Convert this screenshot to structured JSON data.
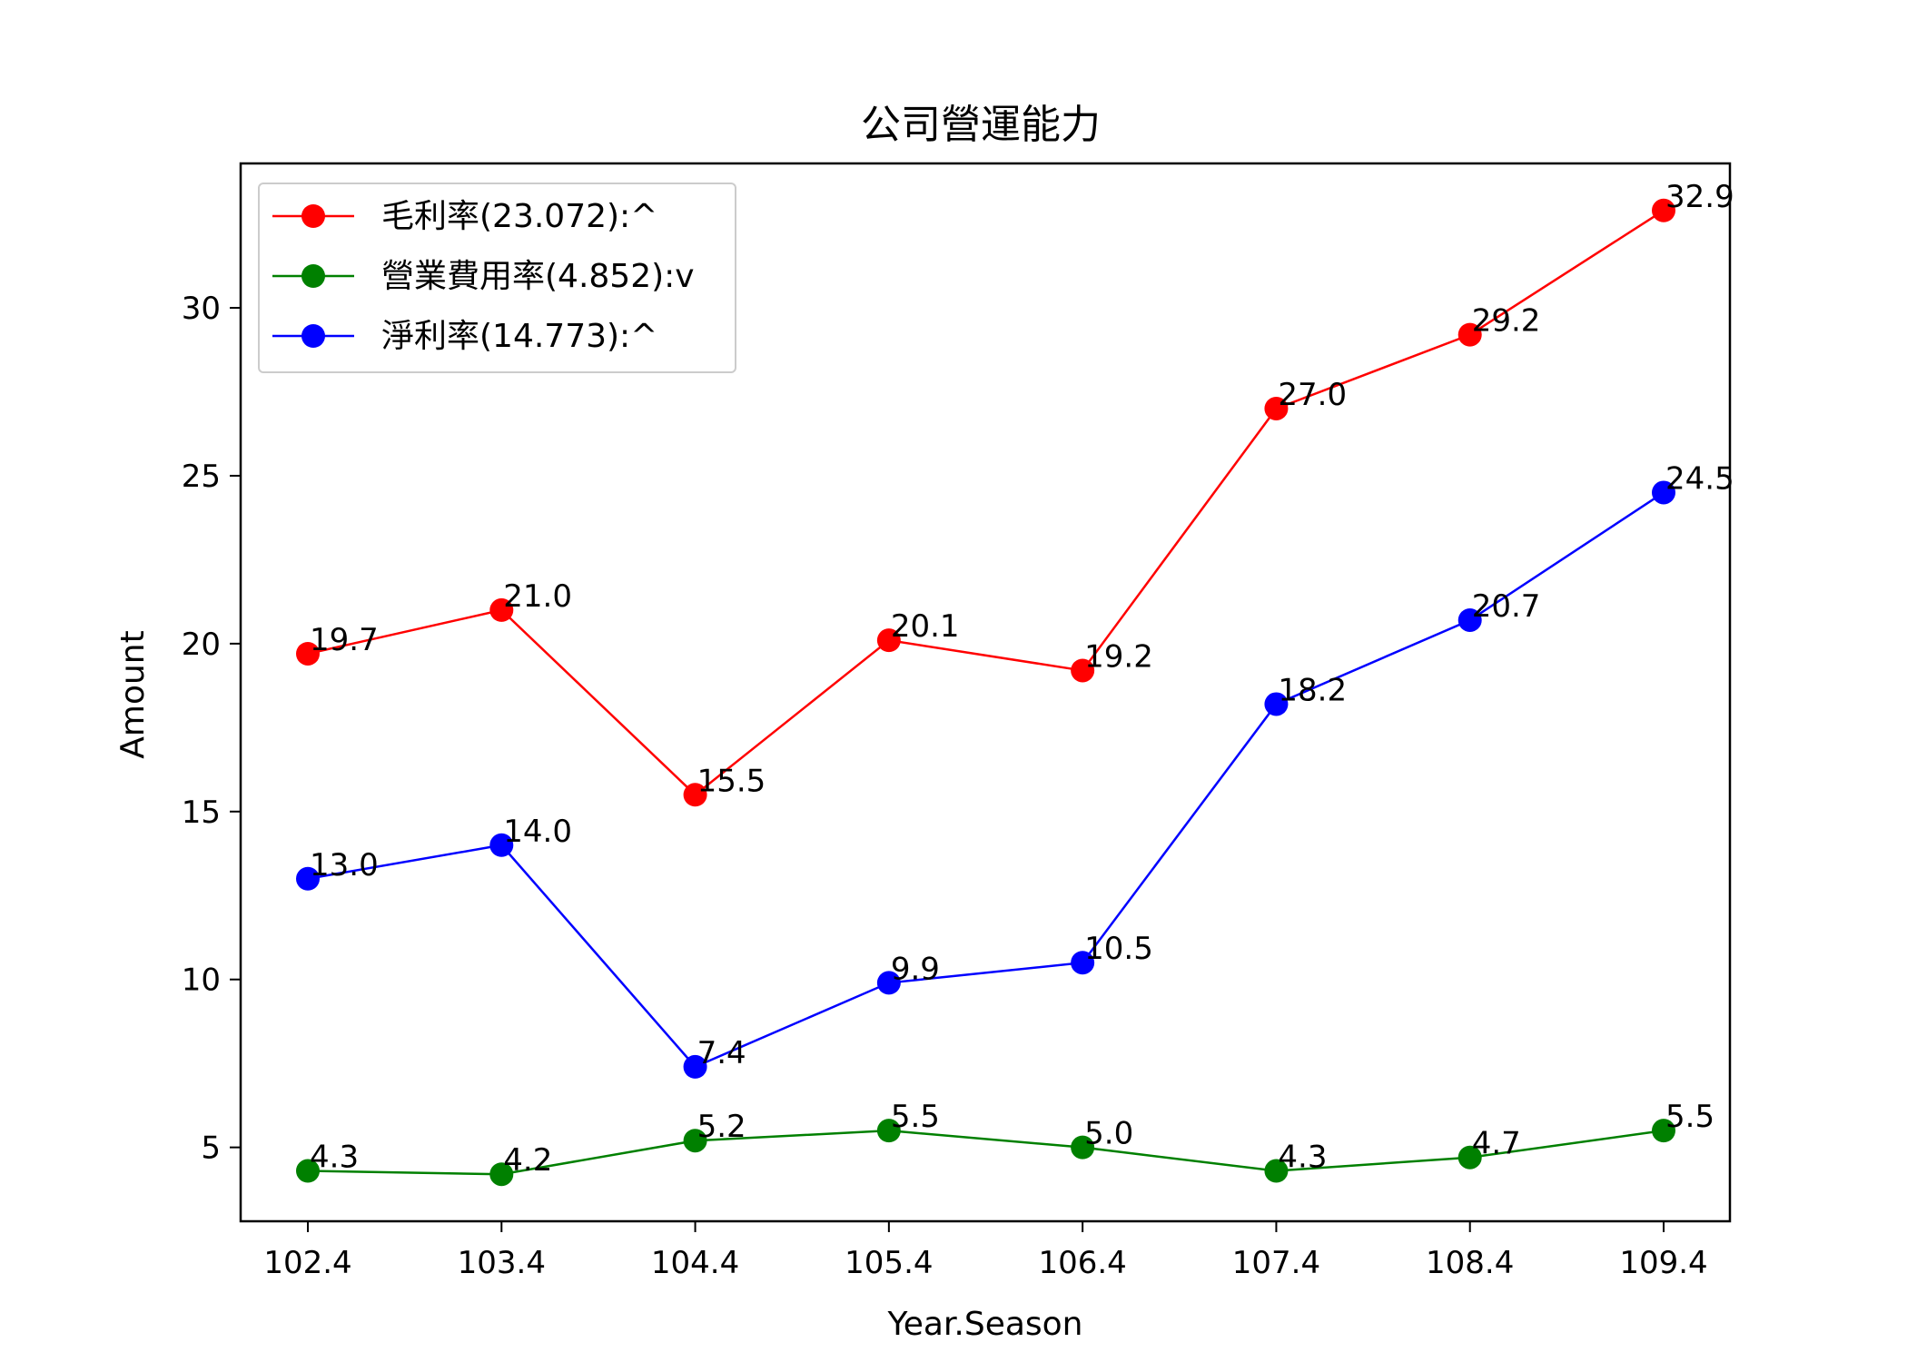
{
  "chart_data": {
    "type": "line",
    "title": "公司營運能力",
    "xlabel": "Year.Season",
    "ylabel": "Amount",
    "categories": [
      "102.4",
      "103.4",
      "104.4",
      "105.4",
      "106.4",
      "107.4",
      "108.4",
      "109.4"
    ],
    "ylim": [
      2.8,
      34.3
    ],
    "yticks": [
      5,
      10,
      15,
      20,
      25,
      30
    ],
    "grid": false,
    "legend_position": "top-left",
    "series": [
      {
        "name": "毛利率(23.072):^",
        "color": "#ff0000",
        "values": [
          19.7,
          21.0,
          15.5,
          20.1,
          19.2,
          27.0,
          29.2,
          32.9
        ],
        "labels": [
          "19.7",
          "21.0",
          "15.5",
          "20.1",
          "19.2",
          "27.0",
          "29.2",
          "32.9"
        ]
      },
      {
        "name": "營業費用率(4.852):v",
        "color": "#008000",
        "values": [
          4.3,
          4.2,
          5.2,
          5.5,
          5.0,
          4.3,
          4.7,
          5.5
        ],
        "labels": [
          "4.3",
          "4.2",
          "5.2",
          "5.5",
          "5.0",
          "4.3",
          "4.7",
          "5.5"
        ]
      },
      {
        "name": "淨利率(14.773):^",
        "color": "#0000ff",
        "values": [
          13.0,
          14.0,
          7.4,
          9.9,
          10.5,
          18.2,
          20.7,
          24.5
        ],
        "labels": [
          "13.0",
          "14.0",
          "7.4",
          "9.9",
          "10.5",
          "18.2",
          "20.7",
          "24.5"
        ]
      }
    ]
  }
}
